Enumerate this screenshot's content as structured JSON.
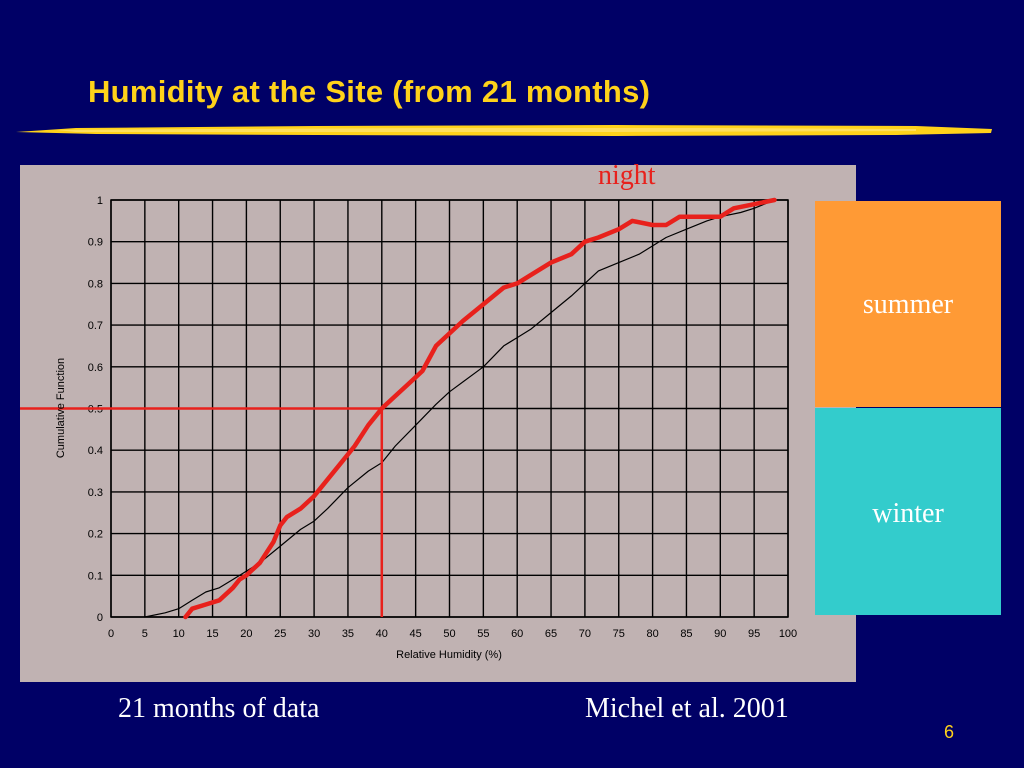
{
  "slide": {
    "title": "Humidity at the Site (from 21 months)",
    "page_number": "6",
    "caption_left": "21 months of data",
    "caption_right": "Michel et al. 2001"
  },
  "legend_boxes": {
    "night_label": "night",
    "summer_label": "summer",
    "winter_label": "winter",
    "summer_color": "#ff9a35",
    "winter_color": "#33cccc"
  },
  "colors": {
    "background": "#000066",
    "title": "#ffd21a",
    "highlight": "#e8211c",
    "panel": "#c0b2b2"
  },
  "chart_data": {
    "type": "line",
    "xlabel": "Relative Humidity (%)",
    "ylabel": "Cumulative Function",
    "xlim": [
      0,
      100
    ],
    "ylim": [
      0,
      1
    ],
    "x_ticks": [
      0,
      5,
      10,
      15,
      20,
      25,
      30,
      35,
      40,
      45,
      50,
      55,
      60,
      65,
      70,
      75,
      80,
      85,
      90,
      95,
      100
    ],
    "y_ticks": [
      0,
      0.1,
      0.2,
      0.3,
      0.4,
      0.5,
      0.6,
      0.7,
      0.8,
      0.9,
      1
    ],
    "grid": true,
    "series": [
      {
        "color": "#000000",
        "points": [
          [
            5,
            0
          ],
          [
            8,
            0.01
          ],
          [
            10,
            0.02
          ],
          [
            12,
            0.04
          ],
          [
            14,
            0.06
          ],
          [
            16,
            0.07
          ],
          [
            18,
            0.09
          ],
          [
            20,
            0.11
          ],
          [
            22,
            0.13
          ],
          [
            25,
            0.17
          ],
          [
            28,
            0.21
          ],
          [
            30,
            0.23
          ],
          [
            32,
            0.26
          ],
          [
            35,
            0.31
          ],
          [
            38,
            0.35
          ],
          [
            40,
            0.37
          ],
          [
            42,
            0.41
          ],
          [
            45,
            0.46
          ],
          [
            48,
            0.51
          ],
          [
            50,
            0.54
          ],
          [
            55,
            0.6
          ],
          [
            58,
            0.65
          ],
          [
            60,
            0.67
          ],
          [
            62,
            0.69
          ],
          [
            65,
            0.73
          ],
          [
            68,
            0.77
          ],
          [
            70,
            0.8
          ],
          [
            72,
            0.83
          ],
          [
            75,
            0.85
          ],
          [
            78,
            0.87
          ],
          [
            80,
            0.89
          ],
          [
            82,
            0.91
          ],
          [
            85,
            0.93
          ],
          [
            88,
            0.95
          ],
          [
            90,
            0.96
          ],
          [
            93,
            0.97
          ],
          [
            95,
            0.98
          ],
          [
            98,
            1
          ]
        ]
      },
      {
        "color": "#e8211c",
        "points": [
          [
            11,
            0
          ],
          [
            12,
            0.02
          ],
          [
            14,
            0.03
          ],
          [
            16,
            0.04
          ],
          [
            18,
            0.07
          ],
          [
            19,
            0.09
          ],
          [
            20,
            0.1
          ],
          [
            22,
            0.13
          ],
          [
            24,
            0.18
          ],
          [
            25,
            0.22
          ],
          [
            26,
            0.24
          ],
          [
            28,
            0.26
          ],
          [
            30,
            0.29
          ],
          [
            32,
            0.33
          ],
          [
            34,
            0.37
          ],
          [
            36,
            0.41
          ],
          [
            38,
            0.46
          ],
          [
            40,
            0.5
          ],
          [
            42,
            0.53
          ],
          [
            44,
            0.56
          ],
          [
            46,
            0.59
          ],
          [
            47,
            0.62
          ],
          [
            48,
            0.65
          ],
          [
            50,
            0.68
          ],
          [
            52,
            0.71
          ],
          [
            55,
            0.75
          ],
          [
            58,
            0.79
          ],
          [
            60,
            0.8
          ],
          [
            62,
            0.82
          ],
          [
            65,
            0.85
          ],
          [
            68,
            0.87
          ],
          [
            70,
            0.9
          ],
          [
            72,
            0.91
          ],
          [
            75,
            0.93
          ],
          [
            77,
            0.95
          ],
          [
            80,
            0.94
          ],
          [
            82,
            0.94
          ],
          [
            84,
            0.96
          ],
          [
            87,
            0.96
          ],
          [
            90,
            0.96
          ],
          [
            92,
            0.98
          ],
          [
            95,
            0.99
          ],
          [
            98,
            1
          ]
        ]
      }
    ],
    "markers": [
      {
        "color": "#e8211c",
        "x_from": 0,
        "x_to": 40,
        "y": 0.5
      },
      {
        "color": "#e8211c",
        "x": 40,
        "y_from": 0,
        "y_to": 0.5
      }
    ]
  }
}
